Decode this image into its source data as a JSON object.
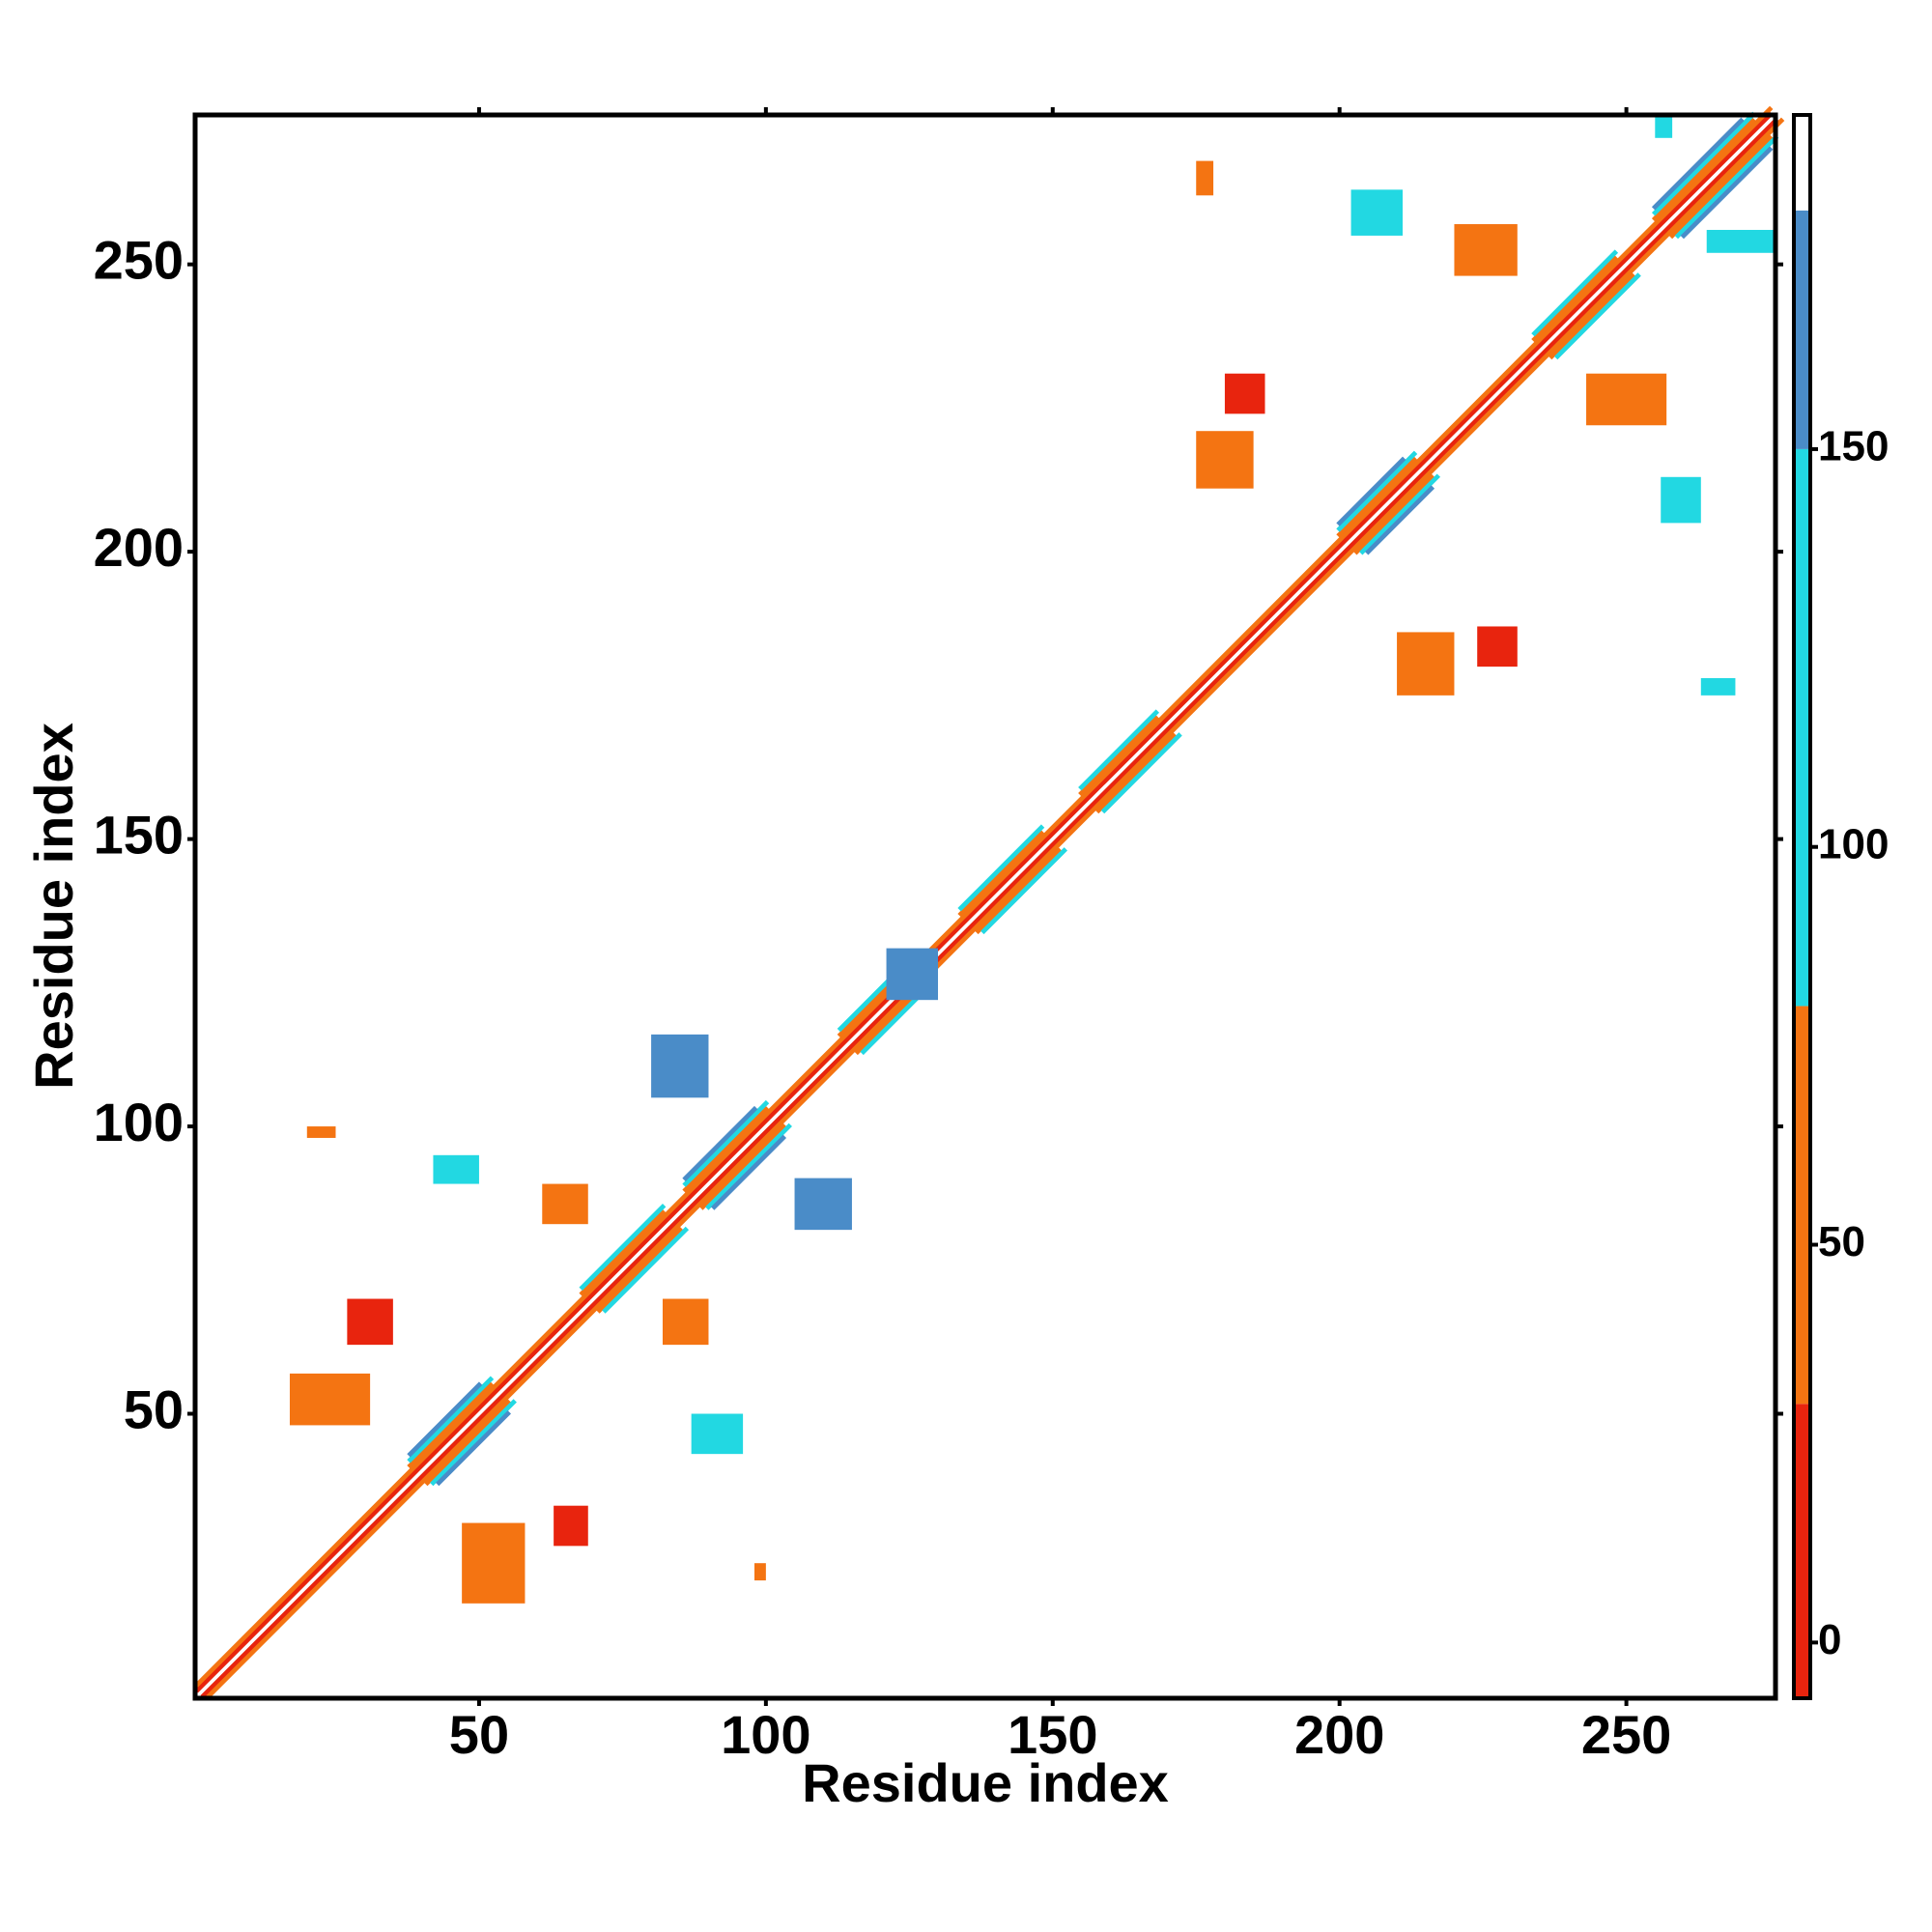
{
  "chart_data": {
    "type": "heatmap",
    "xlabel": "Residue index",
    "ylabel": "Residue index",
    "xlim": [
      0.5,
      276
    ],
    "ylim": [
      0.5,
      276
    ],
    "xticks": [
      50,
      100,
      150,
      200,
      250
    ],
    "yticks": [
      50,
      100,
      150,
      200,
      250
    ],
    "colorbar": {
      "lim": [
        -7,
        192
      ],
      "ticks": [
        0,
        50,
        100,
        150
      ],
      "segments": [
        {
          "range": [
            -7,
            30
          ],
          "color": "#e8240e"
        },
        {
          "range": [
            30,
            80
          ],
          "color": "#f47412"
        },
        {
          "range": [
            80,
            150
          ],
          "color": "#22d8e2"
        },
        {
          "range": [
            150,
            180
          ],
          "color": "#4a8cc8"
        },
        {
          "range": [
            180,
            192
          ],
          "color": "#ffffff"
        }
      ]
    },
    "bands": [
      {
        "offset": 0,
        "range": [
          1,
          275
        ],
        "value": 185
      },
      {
        "offset": 1,
        "range": [
          1,
          275
        ],
        "value": 15
      },
      {
        "offset": 2,
        "range": [
          1,
          275
        ],
        "value": 50
      },
      {
        "offset": 3,
        "range": [
          38,
          52
        ],
        "value": 60
      },
      {
        "offset": 3,
        "range": [
          68,
          82
        ],
        "value": 60
      },
      {
        "offset": 3,
        "range": [
          86,
          100
        ],
        "value": 60
      },
      {
        "offset": 3,
        "range": [
          113,
          123
        ],
        "value": 60
      },
      {
        "offset": 3,
        "range": [
          134,
          148
        ],
        "value": 60
      },
      {
        "offset": 3,
        "range": [
          155,
          168
        ],
        "value": 60
      },
      {
        "offset": 3,
        "range": [
          200,
          213
        ],
        "value": 60
      },
      {
        "offset": 3,
        "range": [
          234,
          248
        ],
        "value": 60
      },
      {
        "offset": 3,
        "range": [
          255,
          272
        ],
        "value": 60
      },
      {
        "offset": 4,
        "range": [
          38,
          52
        ],
        "value": 110
      },
      {
        "offset": 4,
        "range": [
          68,
          82
        ],
        "value": 110
      },
      {
        "offset": 4,
        "range": [
          86,
          100
        ],
        "value": 110
      },
      {
        "offset": 4,
        "range": [
          113,
          123
        ],
        "value": 110
      },
      {
        "offset": 4,
        "range": [
          134,
          148
        ],
        "value": 110
      },
      {
        "offset": 4,
        "range": [
          155,
          168
        ],
        "value": 110
      },
      {
        "offset": 4,
        "range": [
          200,
          213
        ],
        "value": 110
      },
      {
        "offset": 4,
        "range": [
          234,
          248
        ],
        "value": 110
      },
      {
        "offset": 4,
        "range": [
          255,
          272
        ],
        "value": 110
      },
      {
        "offset": 5,
        "range": [
          38,
          50
        ],
        "value": 160
      },
      {
        "offset": 5,
        "range": [
          86,
          98
        ],
        "value": 160
      },
      {
        "offset": 5,
        "range": [
          200,
          211
        ],
        "value": 160
      },
      {
        "offset": 5,
        "range": [
          255,
          270
        ],
        "value": 160
      }
    ],
    "blocks": [
      {
        "x": [
          27,
          35
        ],
        "y": [
          62,
          70
        ],
        "value": 10
      },
      {
        "x": [
          17,
          31
        ],
        "y": [
          48,
          57
        ],
        "value": 45
      },
      {
        "x": [
          20,
          25
        ],
        "y": [
          98,
          100
        ],
        "value": 50
      },
      {
        "x": [
          47,
          58
        ],
        "y": [
          17,
          31
        ],
        "value": 45
      },
      {
        "x": [
          63,
          69
        ],
        "y": [
          27,
          34
        ],
        "value": 10
      },
      {
        "x": [
          61,
          69
        ],
        "y": [
          83,
          90
        ],
        "value": 45
      },
      {
        "x": [
          82,
          90
        ],
        "y": [
          62,
          70
        ],
        "value": 40
      },
      {
        "x": [
          80,
          90
        ],
        "y": [
          105,
          116
        ],
        "value": 160
      },
      {
        "x": [
          105,
          115
        ],
        "y": [
          82,
          91
        ],
        "value": 160
      },
      {
        "x": [
          210,
          220
        ],
        "y": [
          175,
          186
        ],
        "value": 45
      },
      {
        "x": [
          224,
          231
        ],
        "y": [
          180,
          187
        ],
        "value": 10
      },
      {
        "x": [
          175,
          185
        ],
        "y": [
          211,
          221
        ],
        "value": 45
      },
      {
        "x": [
          180,
          187
        ],
        "y": [
          224,
          231
        ],
        "value": 10
      },
      {
        "x": [
          220,
          231
        ],
        "y": [
          248,
          257
        ],
        "value": 45
      },
      {
        "x": [
          243,
          257
        ],
        "y": [
          222,
          231
        ],
        "value": 45
      },
      {
        "x": [
          264,
          276
        ],
        "y": [
          252,
          256
        ],
        "value": 110
      },
      {
        "x": [
          255,
          258
        ],
        "y": [
          272,
          276
        ],
        "value": 110
      },
      {
        "x": [
          42,
          50
        ],
        "y": [
          90,
          95
        ],
        "value": 110
      },
      {
        "x": [
          87,
          96
        ],
        "y": [
          43,
          50
        ],
        "value": 110
      },
      {
        "x": [
          202,
          211
        ],
        "y": [
          255,
          263
        ],
        "value": 110
      },
      {
        "x": [
          256,
          263
        ],
        "y": [
          205,
          213
        ],
        "value": 110
      },
      {
        "x": [
          263,
          269
        ],
        "y": [
          175,
          178
        ],
        "value": 110
      },
      {
        "x": [
          175,
          178
        ],
        "y": [
          262,
          268
        ],
        "value": 50
      },
      {
        "x": [
          98,
          100
        ],
        "y": [
          21,
          24
        ],
        "value": 50
      },
      {
        "x": [
          121,
          130
        ],
        "y": [
          122,
          131
        ],
        "value": 160
      }
    ]
  }
}
